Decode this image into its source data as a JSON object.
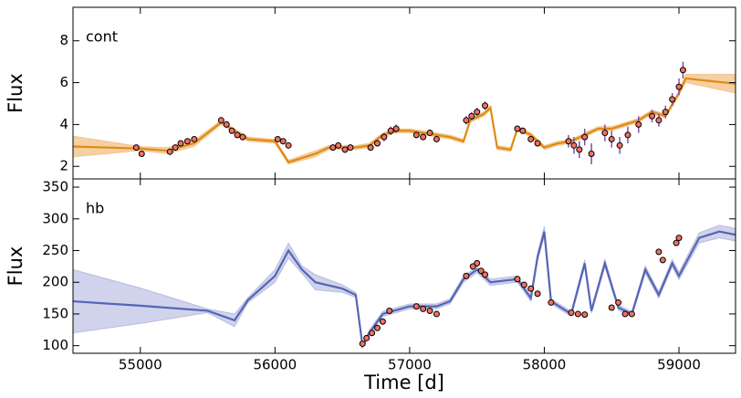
{
  "chart_data": [
    {
      "type": "line",
      "annotation": "cont",
      "ylabel": "Flux",
      "xlim": [
        54500,
        59420
      ],
      "xticks": [
        55000,
        56000,
        57000,
        58000,
        59000
      ],
      "ylim": [
        1.4,
        9.6
      ],
      "yticks": [
        2,
        4,
        6,
        8
      ],
      "series": [
        {
          "role": "model",
          "color": "#e08a14",
          "band_color": "#f2c48c",
          "x": [
            54500,
            55000,
            55200,
            55400,
            55600,
            55700,
            55800,
            56000,
            56100,
            56300,
            56400,
            56600,
            56700,
            56800,
            56900,
            57000,
            57200,
            57300,
            57400,
            57450,
            57550,
            57600,
            57650,
            57750,
            57800,
            57900,
            58000,
            58100,
            58200,
            58300,
            58400,
            58500,
            58700,
            58800,
            58900,
            59000,
            59050,
            59200,
            59420
          ],
          "values": [
            2.95,
            2.85,
            2.75,
            3.1,
            4.1,
            3.7,
            3.3,
            3.2,
            2.2,
            2.6,
            2.9,
            2.9,
            3.0,
            3.5,
            3.7,
            3.7,
            3.5,
            3.4,
            3.2,
            4.2,
            4.5,
            4.8,
            2.9,
            2.8,
            3.8,
            3.5,
            2.9,
            3.1,
            3.2,
            3.5,
            3.8,
            3.8,
            4.2,
            4.6,
            4.4,
            5.5,
            6.2,
            6.1,
            5.95
          ],
          "lower": [
            2.45,
            2.75,
            2.6,
            2.95,
            4.0,
            3.6,
            3.2,
            3.1,
            2.1,
            2.45,
            2.8,
            2.8,
            2.9,
            3.4,
            3.6,
            3.6,
            3.4,
            3.3,
            3.1,
            4.1,
            4.4,
            4.7,
            2.8,
            2.7,
            3.7,
            3.4,
            2.8,
            3.0,
            3.1,
            3.4,
            3.7,
            3.7,
            4.1,
            4.5,
            4.3,
            5.4,
            6.0,
            5.8,
            5.5
          ],
          "upper": [
            3.45,
            2.95,
            2.9,
            3.25,
            4.2,
            3.8,
            3.4,
            3.3,
            2.3,
            2.75,
            3.0,
            3.0,
            3.1,
            3.6,
            3.8,
            3.8,
            3.6,
            3.5,
            3.3,
            4.3,
            4.6,
            4.9,
            3.0,
            2.9,
            3.9,
            3.6,
            3.0,
            3.2,
            3.3,
            3.6,
            3.9,
            3.9,
            4.3,
            4.7,
            4.5,
            5.6,
            6.4,
            6.4,
            6.4
          ]
        },
        {
          "role": "points",
          "color": "#f07060",
          "error_color": "#8050a8",
          "x": [
            54970,
            55010,
            55220,
            55260,
            55300,
            55350,
            55400,
            55600,
            55640,
            55680,
            55720,
            55760,
            56020,
            56060,
            56100,
            56430,
            56470,
            56520,
            56560,
            56710,
            56760,
            56810,
            56860,
            56900,
            57050,
            57100,
            57150,
            57200,
            57420,
            57460,
            57500,
            57560,
            57800,
            57840,
            57900,
            57950,
            58180,
            58220,
            58260,
            58300,
            58350,
            58450,
            58500,
            58560,
            58620,
            58700,
            58800,
            58850,
            58900,
            58950,
            59000,
            59030
          ],
          "values": [
            2.9,
            2.6,
            2.7,
            2.9,
            3.1,
            3.2,
            3.3,
            4.2,
            4.0,
            3.7,
            3.5,
            3.4,
            3.3,
            3.2,
            3.0,
            2.9,
            3.0,
            2.8,
            2.9,
            2.9,
            3.1,
            3.4,
            3.7,
            3.8,
            3.5,
            3.4,
            3.6,
            3.3,
            4.2,
            4.4,
            4.6,
            4.9,
            3.8,
            3.7,
            3.3,
            3.1,
            3.2,
            3.0,
            2.8,
            3.4,
            2.6,
            3.6,
            3.3,
            3.0,
            3.5,
            4.0,
            4.4,
            4.2,
            4.6,
            5.2,
            5.8,
            6.6
          ],
          "errors": [
            0.1,
            0.1,
            0.15,
            0.15,
            0.1,
            0.1,
            0.1,
            0.15,
            0.15,
            0.15,
            0.15,
            0.15,
            0.1,
            0.1,
            0.1,
            0.15,
            0.15,
            0.15,
            0.15,
            0.15,
            0.15,
            0.2,
            0.2,
            0.2,
            0.15,
            0.15,
            0.15,
            0.15,
            0.2,
            0.2,
            0.2,
            0.2,
            0.15,
            0.15,
            0.15,
            0.15,
            0.3,
            0.4,
            0.4,
            0.4,
            0.5,
            0.4,
            0.4,
            0.4,
            0.4,
            0.4,
            0.3,
            0.3,
            0.3,
            0.3,
            0.4,
            0.4
          ]
        }
      ]
    },
    {
      "type": "line",
      "annotation": "hb",
      "ylabel": "Flux",
      "xlabel": "Time [d]",
      "xlim": [
        54500,
        59420
      ],
      "xticks": [
        55000,
        56000,
        57000,
        58000,
        59000
      ],
      "ylim": [
        88,
        363
      ],
      "yticks": [
        100,
        150,
        200,
        250,
        300,
        350
      ],
      "series": [
        {
          "role": "model",
          "color": "#5565b5",
          "band_color": "#c4c8e6",
          "x": [
            54500,
            55000,
            55500,
            55700,
            55800,
            56000,
            56100,
            56200,
            56300,
            56500,
            56600,
            56650,
            56700,
            56800,
            57000,
            57200,
            57300,
            57400,
            57500,
            57600,
            57800,
            57900,
            57950,
            58000,
            58050,
            58200,
            58300,
            58350,
            58450,
            58550,
            58650,
            58750,
            58850,
            58950,
            59000,
            59150,
            59300,
            59420
          ],
          "values": [
            170,
            163,
            155,
            140,
            172,
            210,
            250,
            220,
            200,
            190,
            180,
            100,
            120,
            150,
            162,
            162,
            170,
            205,
            220,
            200,
            205,
            175,
            240,
            280,
            170,
            150,
            230,
            155,
            230,
            160,
            150,
            220,
            180,
            230,
            210,
            270,
            280,
            275
          ],
          "lower": [
            120,
            135,
            152,
            130,
            168,
            200,
            238,
            214,
            188,
            184,
            176,
            97,
            116,
            146,
            158,
            158,
            166,
            200,
            215,
            195,
            200,
            170,
            234,
            272,
            166,
            146,
            224,
            151,
            224,
            156,
            146,
            214,
            175,
            224,
            204,
            262,
            270,
            265
          ],
          "upper": [
            220,
            191,
            158,
            150,
            176,
            220,
            262,
            226,
            212,
            196,
            184,
            103,
            124,
            154,
            166,
            166,
            174,
            210,
            225,
            205,
            210,
            180,
            246,
            288,
            174,
            154,
            236,
            159,
            236,
            164,
            154,
            226,
            185,
            236,
            216,
            278,
            290,
            285
          ]
        },
        {
          "role": "points",
          "color": "#f07060",
          "error_color": "#8050a8",
          "x": [
            56650,
            56680,
            56720,
            56760,
            56800,
            56850,
            57050,
            57100,
            57150,
            57200,
            57420,
            57470,
            57500,
            57530,
            57560,
            57800,
            57850,
            57900,
            57950,
            58050,
            58200,
            58250,
            58300,
            58500,
            58550,
            58600,
            58650,
            58850,
            58880,
            58980,
            59000
          ],
          "values": [
            103,
            112,
            120,
            128,
            138,
            155,
            162,
            158,
            155,
            150,
            210,
            225,
            230,
            218,
            212,
            205,
            196,
            190,
            182,
            168,
            152,
            150,
            149,
            160,
            168,
            150,
            150,
            248,
            235,
            262,
            270
          ],
          "errors": [
            3,
            3,
            3,
            3,
            3,
            3,
            3,
            3,
            3,
            3,
            3,
            3,
            3,
            3,
            3,
            3,
            3,
            3,
            3,
            3,
            3,
            3,
            3,
            3,
            3,
            3,
            3,
            3,
            3,
            3,
            3
          ]
        }
      ]
    }
  ]
}
